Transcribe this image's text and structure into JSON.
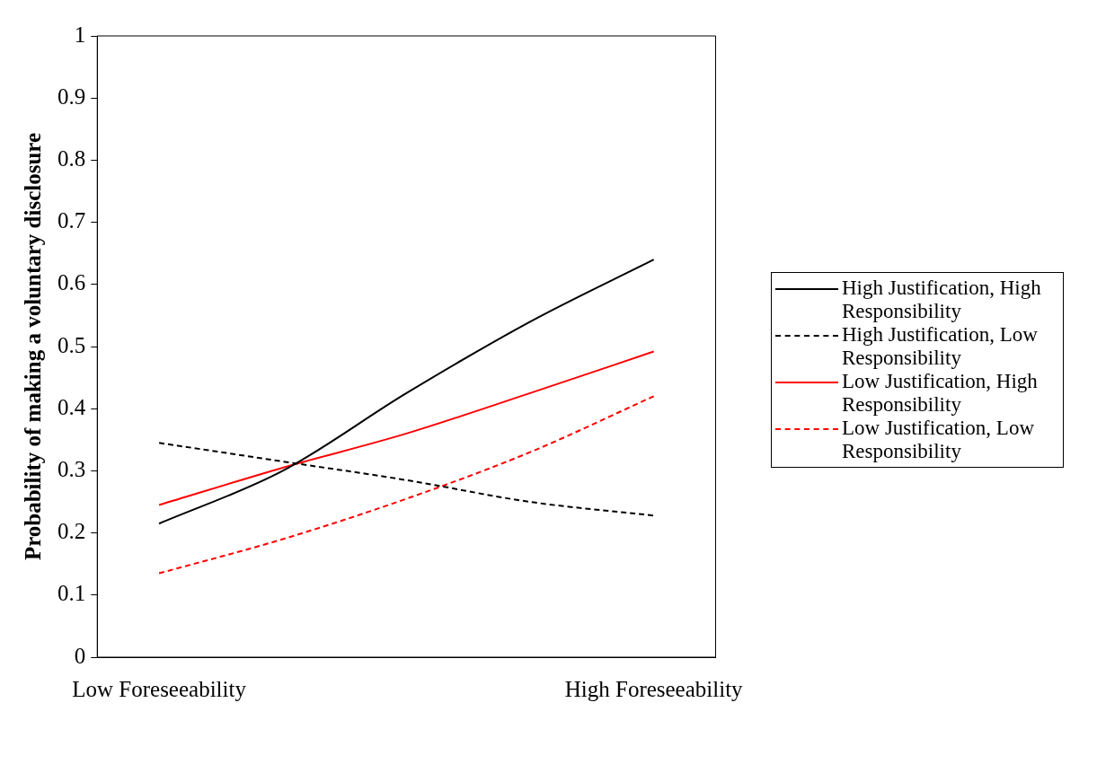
{
  "chart_data": {
    "type": "line",
    "ylabel": "Probability of making a voluntary disclosure",
    "categories": [
      "Low Foreseeability",
      null,
      null,
      null,
      "High Foreseeability"
    ],
    "ylim": [
      0,
      1
    ],
    "yticks": [
      0,
      0.1,
      0.2,
      0.3,
      0.4,
      0.5,
      0.6,
      0.7,
      0.8,
      0.9,
      1
    ],
    "grid": false,
    "legend": "right",
    "marker": "none",
    "series": [
      {
        "name": "High Justification, High Responsibility",
        "color": "#000000",
        "line_style": "solid",
        "values": [
          0.215,
          0.3,
          0.425,
          0.54,
          0.64
        ]
      },
      {
        "name": "High Justification, Low Responsibility",
        "color": "#000000",
        "line_style": "dashed",
        "values": [
          0.345,
          0.315,
          0.285,
          0.25,
          0.228
        ]
      },
      {
        "name": "Low Justification, High Responsibility",
        "color": "#ff0000",
        "line_style": "solid",
        "values": [
          0.245,
          0.305,
          0.36,
          0.425,
          0.492
        ]
      },
      {
        "name": "Low Justification, Low Responsibility",
        "color": "#ff0000",
        "line_style": "dashed",
        "values": [
          0.135,
          0.19,
          0.255,
          0.33,
          0.42
        ]
      }
    ]
  }
}
